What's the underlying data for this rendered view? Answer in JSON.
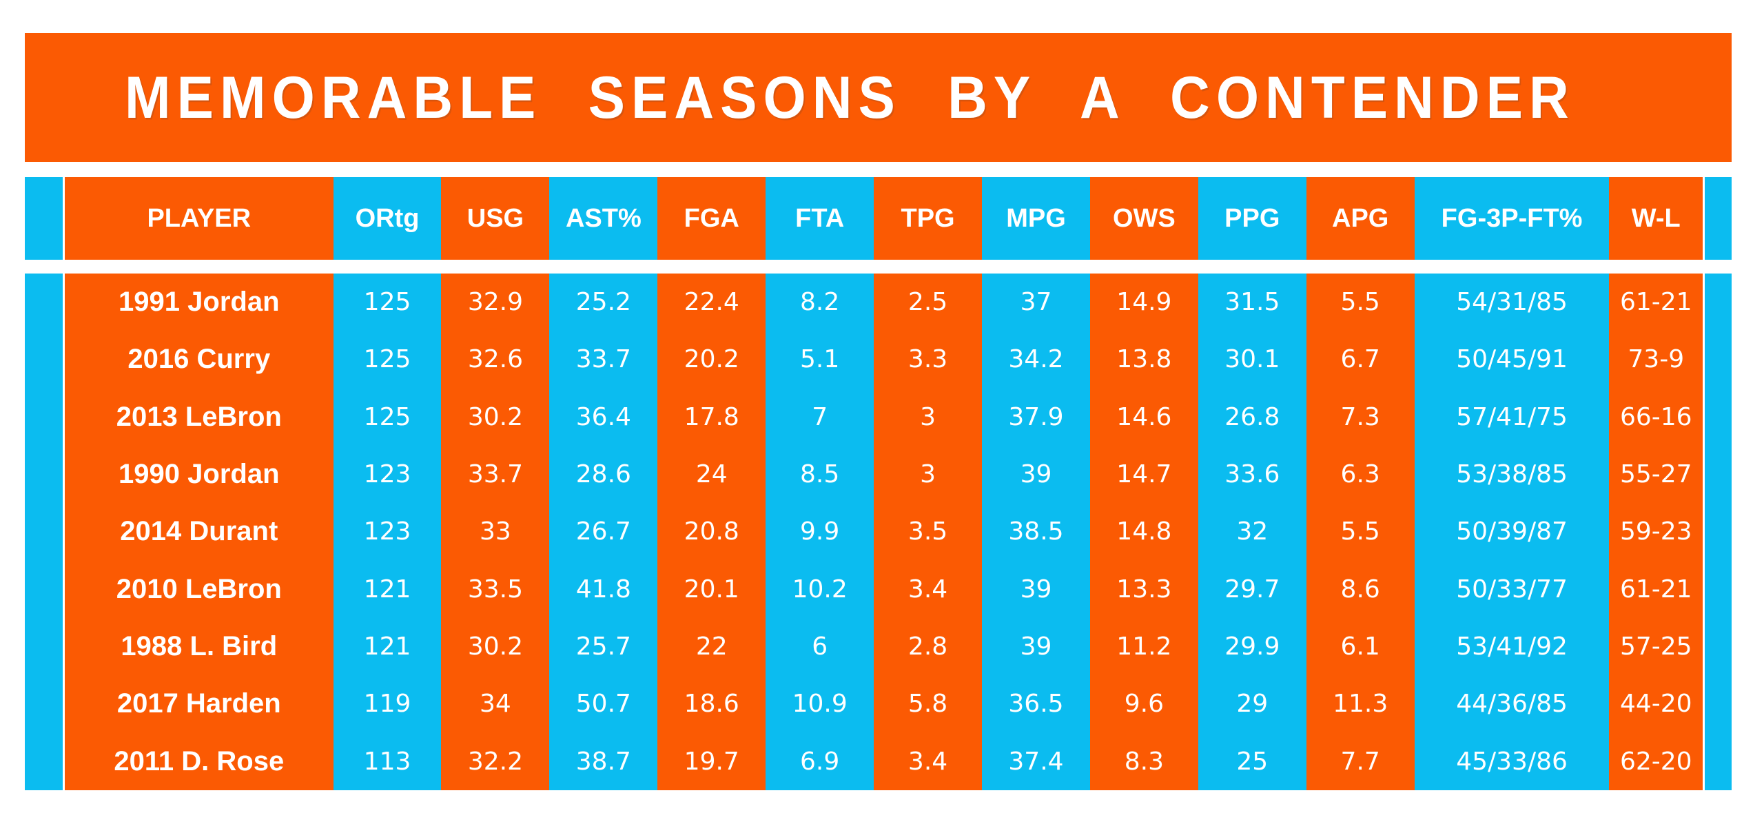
{
  "title": "MEMORABLE SEASONS BY A CONTENDER",
  "colors": {
    "orange": "#FB5A03",
    "cyan": "#0BBCF0",
    "background": "#FFFFFF",
    "text": "#FFFFFF"
  },
  "chart_data": {
    "type": "table",
    "title": "MEMORABLE SEASONS BY A CONTENDER",
    "columns": [
      "PLAYER",
      "ORtg",
      "USG",
      "AST%",
      "FGA",
      "FTA",
      "TPG",
      "MPG",
      "OWS",
      "PPG",
      "APG",
      "FG-3P-FT%",
      "W-L"
    ],
    "rows": [
      [
        "1991 Jordan",
        "125",
        "32.9",
        "25.2",
        "22.4",
        "8.2",
        "2.5",
        "37",
        "14.9",
        "31.5",
        "5.5",
        "54/31/85",
        "61-21"
      ],
      [
        "2016 Curry",
        "125",
        "32.6",
        "33.7",
        "20.2",
        "5.1",
        "3.3",
        "34.2",
        "13.8",
        "30.1",
        "6.7",
        "50/45/91",
        "73-9"
      ],
      [
        "2013 LeBron",
        "125",
        "30.2",
        "36.4",
        "17.8",
        "7",
        "3",
        "37.9",
        "14.6",
        "26.8",
        "7.3",
        "57/41/75",
        "66-16"
      ],
      [
        "1990 Jordan",
        "123",
        "33.7",
        "28.6",
        "24",
        "8.5",
        "3",
        "39",
        "14.7",
        "33.6",
        "6.3",
        "53/38/85",
        "55-27"
      ],
      [
        "2014 Durant",
        "123",
        "33",
        "26.7",
        "20.8",
        "9.9",
        "3.5",
        "38.5",
        "14.8",
        "32",
        "5.5",
        "50/39/87",
        "59-23"
      ],
      [
        "2010 LeBron",
        "121",
        "33.5",
        "41.8",
        "20.1",
        "10.2",
        "3.4",
        "39",
        "13.3",
        "29.7",
        "8.6",
        "50/33/77",
        "61-21"
      ],
      [
        "1988 L. Bird",
        "121",
        "30.2",
        "25.7",
        "22",
        "6",
        "2.8",
        "39",
        "11.2",
        "29.9",
        "6.1",
        "53/41/92",
        "57-25"
      ],
      [
        "2017 Harden",
        "119",
        "34",
        "50.7",
        "18.6",
        "10.9",
        "5.8",
        "36.5",
        "9.6",
        "29",
        "11.3",
        "44/36/85",
        "44-20"
      ],
      [
        "2011 D. Rose",
        "113",
        "32.2",
        "38.7",
        "19.7",
        "6.9",
        "3.4",
        "37.4",
        "8.3",
        "25",
        "7.7",
        "45/33/86",
        "62-20"
      ]
    ],
    "layout": {
      "column_band_colors": "alternating orange/cyan starting with orange for PLAYER",
      "edge_strips": "narrow cyan strips on far left and far right",
      "grid": "off",
      "legend": "none"
    }
  }
}
